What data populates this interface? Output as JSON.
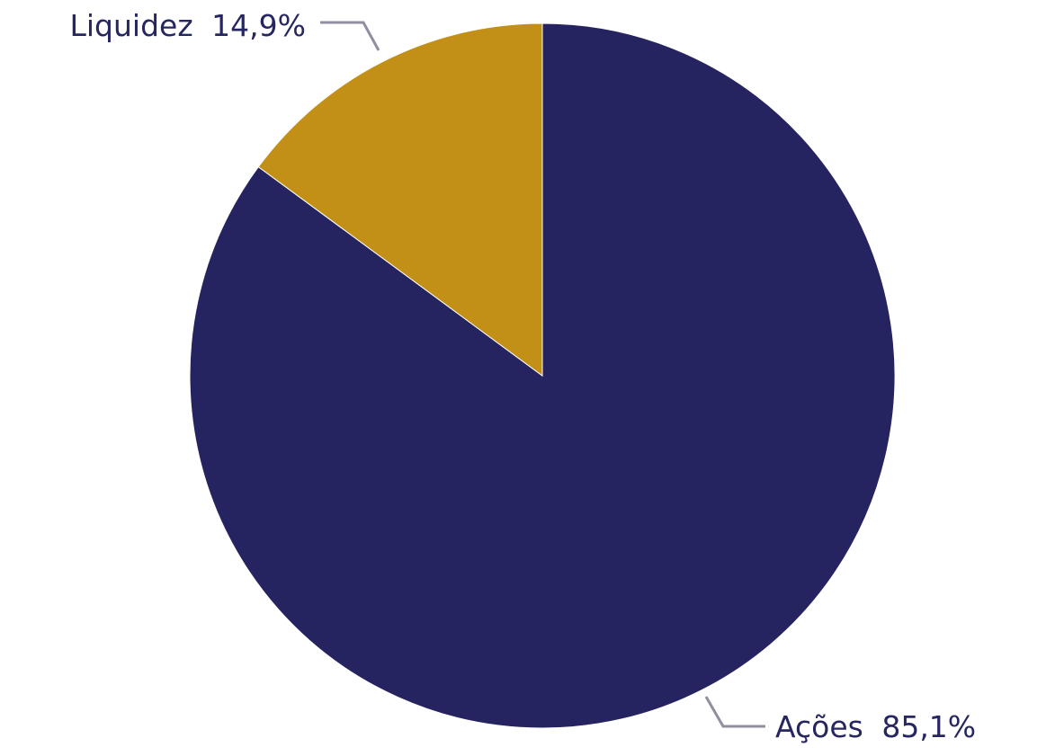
{
  "chart_data": {
    "type": "pie",
    "start": "top",
    "direction": "clockwise",
    "slices": [
      {
        "label": "Ações",
        "value": 85.1,
        "value_text": "85,1%",
        "color": "#262460"
      },
      {
        "label": "Liquidez",
        "value": 14.9,
        "value_text": "14,9%",
        "color": "#C39017"
      }
    ]
  }
}
